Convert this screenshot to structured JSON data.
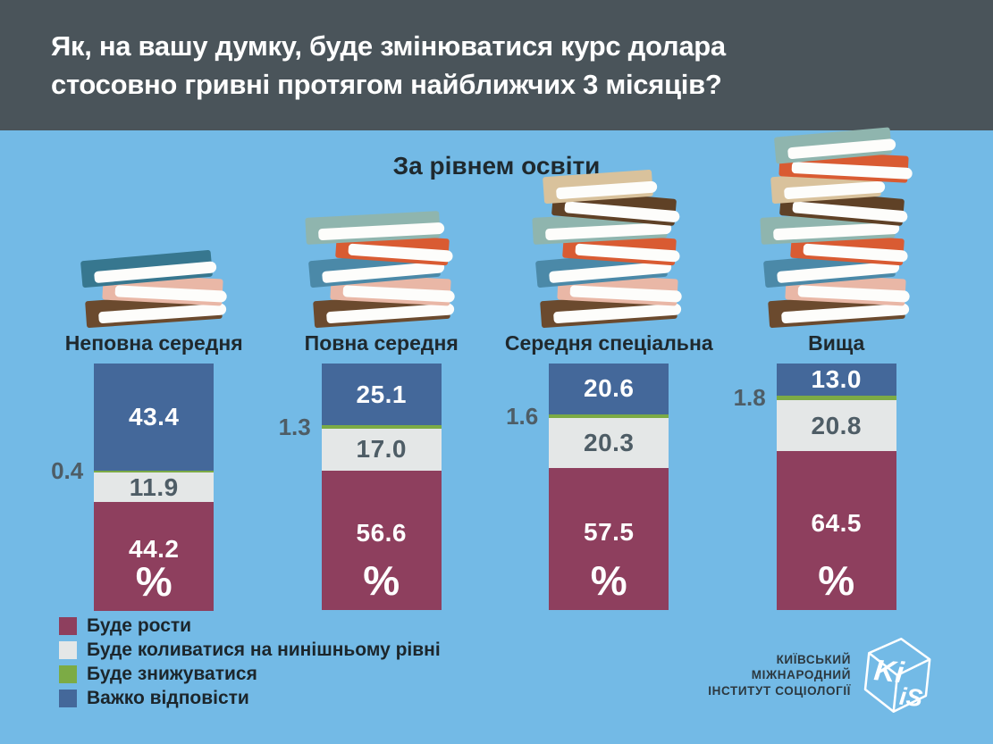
{
  "header": {
    "title_lines": [
      "Як, на вашу думку, буде змінюватися курс долара",
      "стосовно гривні протягом найближчих 3 місяців?"
    ]
  },
  "chart_data": {
    "type": "bar",
    "stacked": true,
    "percent_total": 100,
    "ylim": [
      0,
      100
    ],
    "unit": "%",
    "title": "Як, на вашу думку, буде змінюватися курс долара стосовно гривні протягом найближчих 3 місяців?",
    "subtitle": "За рівнем освіти",
    "categories": [
      "Неповна середня",
      "Повна середня",
      "Середня спеціальна",
      "Вища"
    ],
    "series": [
      {
        "name": "Буде рости",
        "color": "#8e3f5e",
        "values": [
          "44.2",
          "56.6",
          "57.5",
          "64.5"
        ],
        "label_style": "inside-white"
      },
      {
        "name": "Буде коливатися на нинішньому рівні",
        "color": "#e4e7e7",
        "values": [
          "11.9",
          "17.0",
          "20.3",
          "20.8"
        ],
        "label_style": "inside-dark"
      },
      {
        "name": "Буде знижуватися",
        "color": "#7cab45",
        "values": [
          "0.4",
          "1.3",
          "1.6",
          "1.8"
        ],
        "label_style": "outside-left"
      },
      {
        "name": "Важко відповісти",
        "color": "#44689a",
        "values": [
          "43.4",
          "25.1",
          "20.6",
          "13.0"
        ],
        "label_style": "inside-white"
      }
    ],
    "segment_order_top_to_bottom": [
      "Важко відповісти",
      "Буде знижуватися",
      "Буде коливатися на нинішньому рівні",
      "Буде рости"
    ],
    "bar_footer_symbol": "%",
    "legend_position": "bottom-left",
    "grid": false
  },
  "books": {
    "stacks": [
      {
        "category": "Неповна середня",
        "count": 3,
        "colors_bottom_to_top": [
          "#6b4a2e",
          "#e9b7a6",
          "#37778f"
        ]
      },
      {
        "category": "Повна середня",
        "count": 5,
        "colors_bottom_to_top": [
          "#6b4a2e",
          "#e9b7a6",
          "#4b89a8",
          "#d95b32",
          "#8fb5ae"
        ]
      },
      {
        "category": "Середня спеціальна",
        "count": 7,
        "colors_bottom_to_top": [
          "#6b4a2e",
          "#e9b7a6",
          "#4b89a8",
          "#d95b32",
          "#8fb5ae",
          "#5f4126",
          "#d9c29c"
        ]
      },
      {
        "category": "Вища",
        "count": 9,
        "colors_bottom_to_top": [
          "#6b4a2e",
          "#e9b7a6",
          "#4b89a8",
          "#d95b32",
          "#8fb5ae",
          "#5f4126",
          "#d9c29c",
          "#d95b32",
          "#8fb5ae"
        ]
      }
    ]
  },
  "footer": {
    "org_lines": [
      "КИЇВСЬКИЙ",
      "МІЖНАРОДНИЙ",
      "ІНСТИТУТ СОЦІОЛОГІЇ"
    ],
    "logo_text_left": "Ki",
    "logo_text_right": "iS"
  },
  "colors": {
    "background": "#73bae6",
    "header_bg": "#4a545a",
    "text_dark": "#1f292e",
    "text_slate": "#4e5d66",
    "bar_grow": "#8e3f5e",
    "bar_fluctuate": "#e4e7e7",
    "bar_decrease": "#7cab45",
    "bar_hard_to_say": "#44689a"
  }
}
